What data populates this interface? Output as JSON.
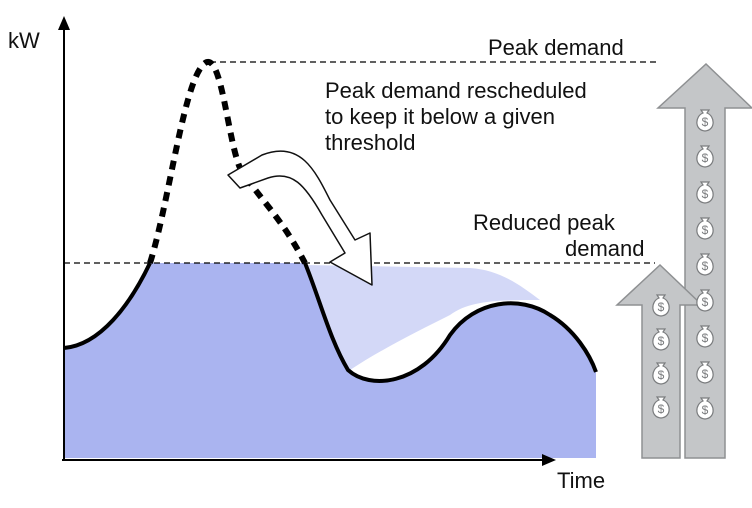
{
  "axes": {
    "y_label": "kW",
    "x_label": "Time"
  },
  "annotations": {
    "peak_demand": "Peak demand",
    "rescheduled_line1": "Peak demand rescheduled",
    "rescheduled_line2": "to keep it below a given",
    "rescheduled_line3": "threshold",
    "reduced_line1": "Reduced peak",
    "reduced_line2": "demand"
  },
  "icons": {
    "money_bag": "dollar-bag-icon",
    "dollar_symbol": "$"
  },
  "colors": {
    "fill_primary": "#aab4f0",
    "fill_shifted": "#d3d8f7",
    "curve": "#000000",
    "arrow_gray": "#c4c6c8",
    "arrow_outline": "#8e9092"
  }
}
